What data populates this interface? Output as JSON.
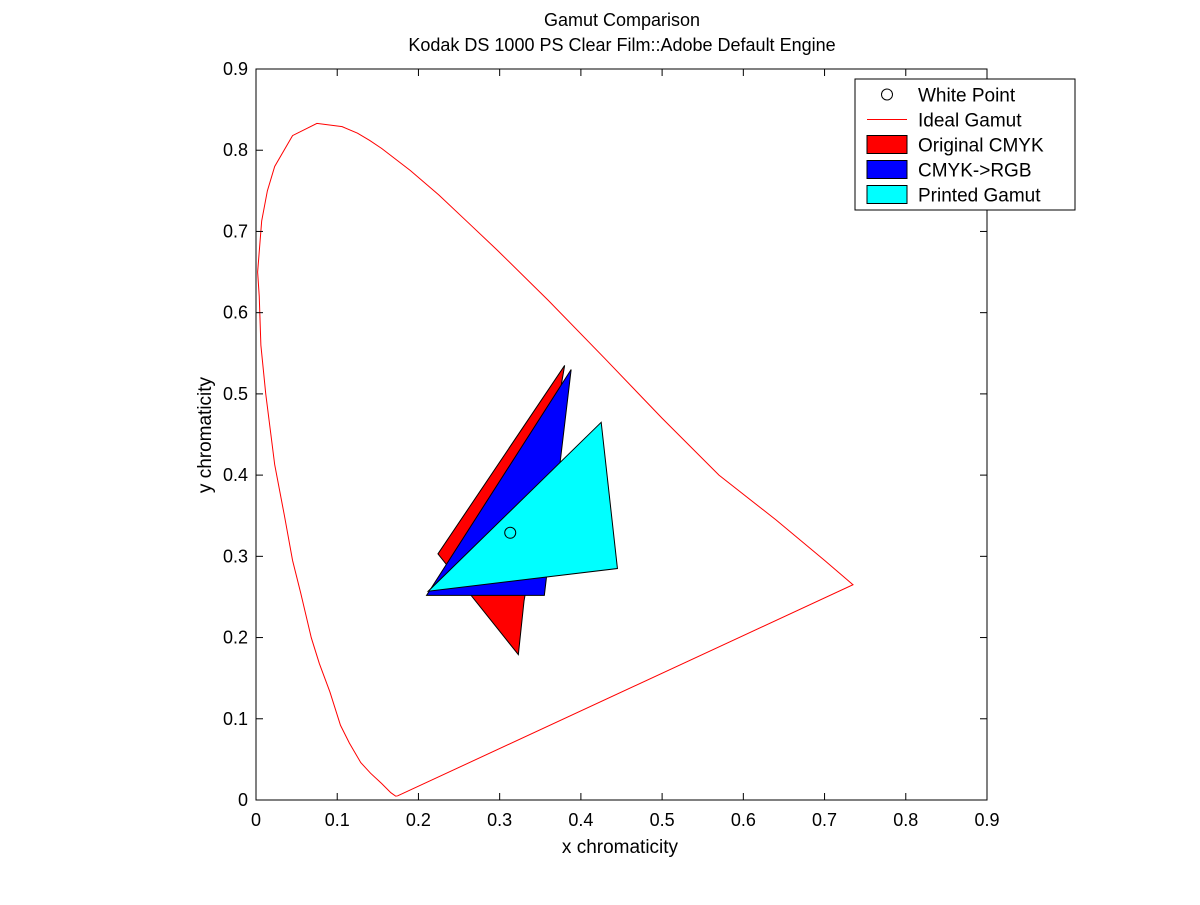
{
  "chart_data": {
    "type": "area",
    "title": "Gamut Comparison",
    "subtitle": "Kodak DS 1000 PS Clear Film::Adobe Default Engine",
    "xlabel": "x chromaticity",
    "ylabel": "y chromaticity",
    "xlim": [
      0,
      0.9
    ],
    "ylim": [
      0,
      0.9
    ],
    "xticks": [
      0,
      0.1,
      0.2,
      0.3,
      0.4,
      0.5,
      0.6,
      0.7,
      0.8,
      0.9
    ],
    "yticks": [
      0,
      0.1,
      0.2,
      0.3,
      0.4,
      0.5,
      0.6,
      0.7,
      0.8,
      0.9
    ],
    "xtick_labels": [
      "0",
      "0.1",
      "0.2",
      "0.3",
      "0.4",
      "0.5",
      "0.6",
      "0.7",
      "0.8",
      "0.9"
    ],
    "ytick_labels": [
      "0",
      "0.1",
      "0.2",
      "0.3",
      "0.4",
      "0.5",
      "0.6",
      "0.7",
      "0.8",
      "0.9"
    ],
    "grid": false,
    "legend_position": "top-right",
    "series": [
      {
        "name": "White Point",
        "kind": "marker",
        "color": "#000000",
        "points": [
          [
            0.313,
            0.329
          ]
        ]
      },
      {
        "name": "Ideal Gamut",
        "kind": "line",
        "color": "#ff0000",
        "points": [
          [
            0.1741,
            0.005
          ],
          [
            0.172,
            0.0048
          ],
          [
            0.166,
            0.009
          ],
          [
            0.155,
            0.02
          ],
          [
            0.141,
            0.033
          ],
          [
            0.129,
            0.046
          ],
          [
            0.115,
            0.07
          ],
          [
            0.104,
            0.092
          ],
          [
            0.091,
            0.133
          ],
          [
            0.078,
            0.168
          ],
          [
            0.068,
            0.2
          ],
          [
            0.055,
            0.255
          ],
          [
            0.045,
            0.295
          ],
          [
            0.035,
            0.35
          ],
          [
            0.023,
            0.413
          ],
          [
            0.012,
            0.5
          ],
          [
            0.006,
            0.56
          ],
          [
            0.004,
            0.62
          ],
          [
            0.002,
            0.65
          ],
          [
            0.007,
            0.713
          ],
          [
            0.014,
            0.75
          ],
          [
            0.023,
            0.78
          ],
          [
            0.045,
            0.818
          ],
          [
            0.075,
            0.833
          ],
          [
            0.106,
            0.829
          ],
          [
            0.125,
            0.821
          ],
          [
            0.14,
            0.812
          ],
          [
            0.155,
            0.802
          ],
          [
            0.19,
            0.775
          ],
          [
            0.225,
            0.745
          ],
          [
            0.26,
            0.712
          ],
          [
            0.297,
            0.677
          ],
          [
            0.36,
            0.615
          ],
          [
            0.43,
            0.543
          ],
          [
            0.5,
            0.47
          ],
          [
            0.57,
            0.4
          ],
          [
            0.64,
            0.345
          ],
          [
            0.7,
            0.295
          ],
          [
            0.735,
            0.265
          ],
          [
            0.1741,
            0.005
          ]
        ]
      },
      {
        "name": "Original CMYK",
        "kind": "polygon",
        "color": "#ff0000",
        "points": [
          [
            0.38,
            0.535
          ],
          [
            0.224,
            0.303
          ],
          [
            0.323,
            0.179
          ],
          [
            0.33,
            0.245
          ]
        ]
      },
      {
        "name": "CMYK->RGB",
        "kind": "polygon",
        "color": "#0000ff",
        "points": [
          [
            0.388,
            0.53
          ],
          [
            0.21,
            0.252
          ],
          [
            0.355,
            0.252
          ]
        ]
      },
      {
        "name": "Printed Gamut",
        "kind": "polygon",
        "color": "#00ffff",
        "points": [
          [
            0.425,
            0.465
          ],
          [
            0.212,
            0.257
          ],
          [
            0.445,
            0.285
          ]
        ]
      }
    ]
  }
}
